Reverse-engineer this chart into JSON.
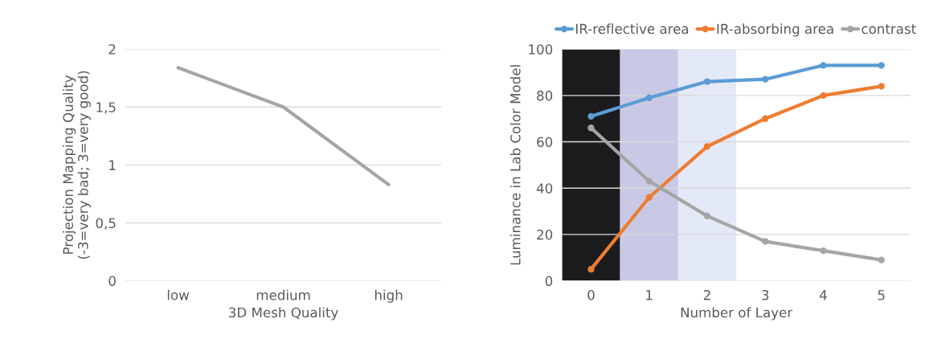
{
  "chart_data": [
    {
      "type": "line",
      "xlabel": "3D Mesh Quality",
      "ylabel": "Projection Mapping Quality\n(-3=very bad; 3=very good)",
      "categories": [
        "low",
        "medium",
        "high"
      ],
      "series": [
        {
          "color": "#a5a5a5",
          "values": [
            1.84,
            1.5,
            0.83
          ]
        }
      ],
      "ylim": [
        0,
        2
      ],
      "yticks": [
        0,
        {
          "value": 0.5,
          "label": "0,5"
        },
        1,
        {
          "value": 1.5,
          "label": "1,5"
        },
        2
      ],
      "grid": "y",
      "marker": "none",
      "legend": false
    },
    {
      "type": "line",
      "xlabel": "Number of Layer",
      "ylabel": "Luminance in Lab Color Model",
      "x": [
        0,
        1,
        2,
        3,
        4,
        5
      ],
      "series": [
        {
          "name": "IR-reflective area",
          "color": "#5b9bd5",
          "values": [
            71,
            79,
            86,
            87,
            93,
            93
          ]
        },
        {
          "name": "IR-absorbing area",
          "color": "#ed7d31",
          "values": [
            5,
            36,
            58,
            70,
            80,
            84
          ]
        },
        {
          "name": "contrast",
          "color": "#a5a5a5",
          "values": [
            66,
            43,
            28,
            17,
            13,
            9
          ]
        }
      ],
      "bands": [
        {
          "axis": "x",
          "from": -0.5,
          "to": 0.5,
          "color": "#1c1c1e"
        },
        {
          "axis": "x",
          "from": 0.5,
          "to": 1.5,
          "color": "#c9c9e6"
        },
        {
          "axis": "x",
          "from": 1.5,
          "to": 2.5,
          "color": "#e4e9f8"
        }
      ],
      "xlim": [
        -0.5,
        5.5
      ],
      "xticks": [
        0,
        1,
        2,
        3,
        4,
        5
      ],
      "ylim": [
        0,
        100
      ],
      "yticks": [
        0,
        20,
        40,
        60,
        80,
        100
      ],
      "grid": "y",
      "marker": "circle",
      "legend": "top"
    }
  ]
}
